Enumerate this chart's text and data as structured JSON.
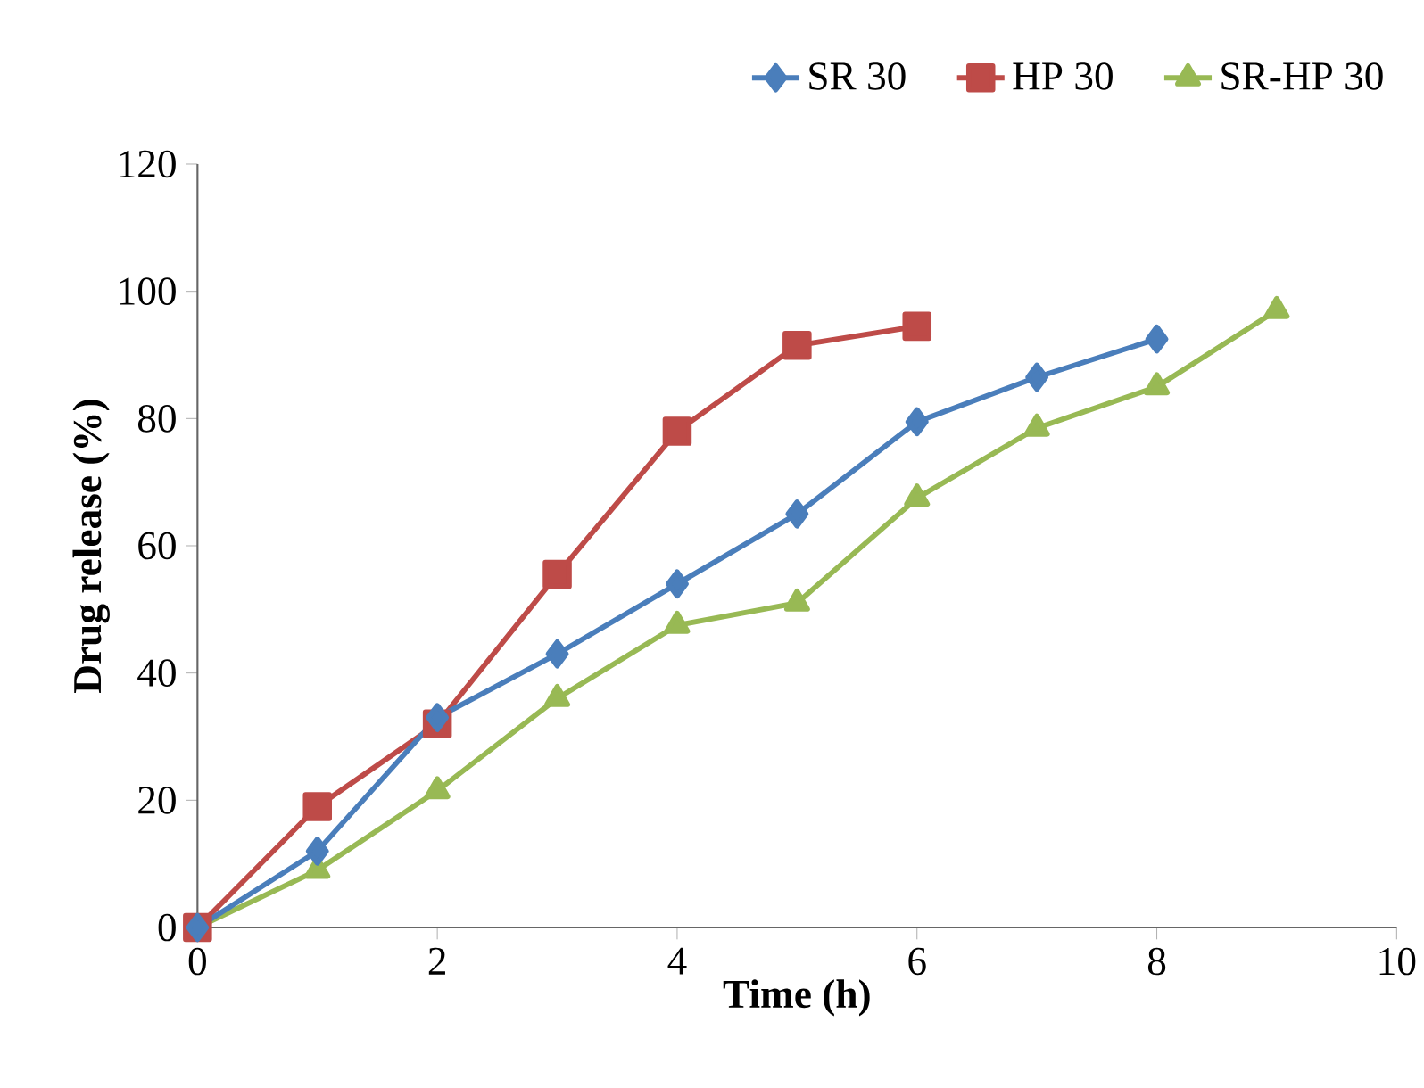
{
  "chart_data": {
    "type": "line",
    "xlabel": "Time (h)",
    "ylabel": "Drug release (%)",
    "xlim": [
      0,
      10
    ],
    "ylim": [
      0,
      120
    ],
    "xticks": [
      0,
      2,
      4,
      6,
      8,
      10
    ],
    "yticks": [
      0,
      20,
      40,
      60,
      80,
      100,
      120
    ],
    "legend": "top right",
    "grid": false,
    "series": [
      {
        "name": "SR 30",
        "color": "#4a7ebb",
        "marker": "diamond",
        "x": [
          0,
          1,
          2,
          3,
          4,
          5,
          6,
          7,
          8
        ],
        "values": [
          0,
          12,
          33,
          43,
          54,
          65,
          79.5,
          86.5,
          92.5
        ]
      },
      {
        "name": "HP 30",
        "color": "#be4b48",
        "marker": "square",
        "x": [
          0,
          1,
          2,
          3,
          4,
          5,
          6
        ],
        "values": [
          0,
          19,
          32,
          55.5,
          78,
          91.5,
          94.5
        ]
      },
      {
        "name": "SR-HP 30",
        "color": "#98b954",
        "marker": "triangle",
        "x": [
          0,
          1,
          2,
          3,
          4,
          5,
          6,
          7,
          8,
          9
        ],
        "values": [
          0,
          9,
          21.5,
          36,
          47.5,
          51,
          67.5,
          78.5,
          85,
          97
        ]
      }
    ]
  }
}
